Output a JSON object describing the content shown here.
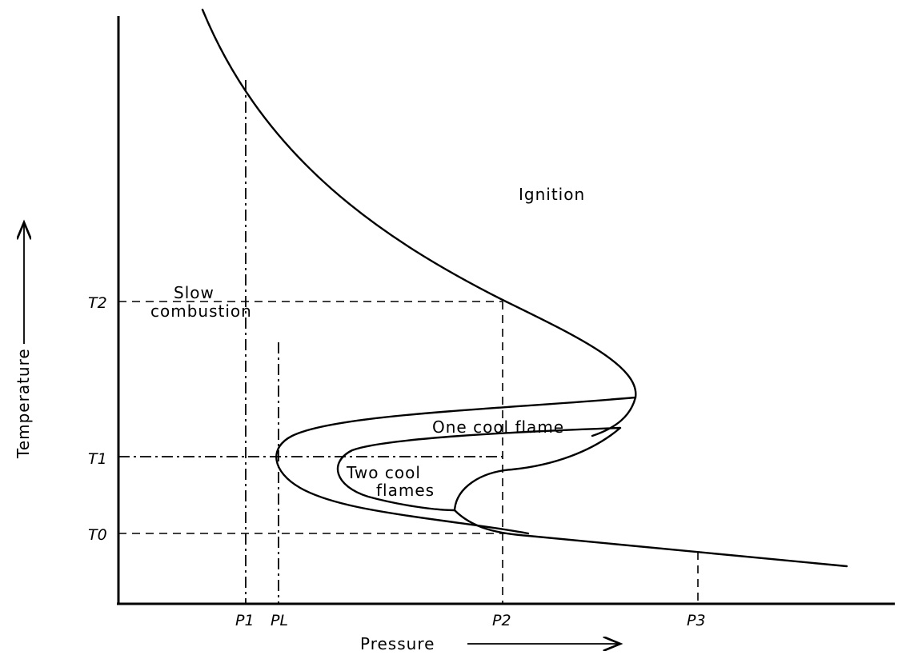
{
  "regions": {
    "ignition": "Ignition",
    "slow_combustion_line1": "Slow",
    "slow_combustion_line2": "combustion",
    "one_cool_flame": "One cool flame",
    "two_cool_flames_line1": "Two cool",
    "two_cool_flames_line2": "flames"
  },
  "y_ticks": {
    "t2": "T2",
    "t1": "T1",
    "t0": "T0"
  },
  "x_ticks": {
    "p1": "P1",
    "pl": "PL",
    "p2": "P2",
    "p3": "P3"
  },
  "axes": {
    "x_title": "Pressure",
    "y_title": "Temperature"
  }
}
